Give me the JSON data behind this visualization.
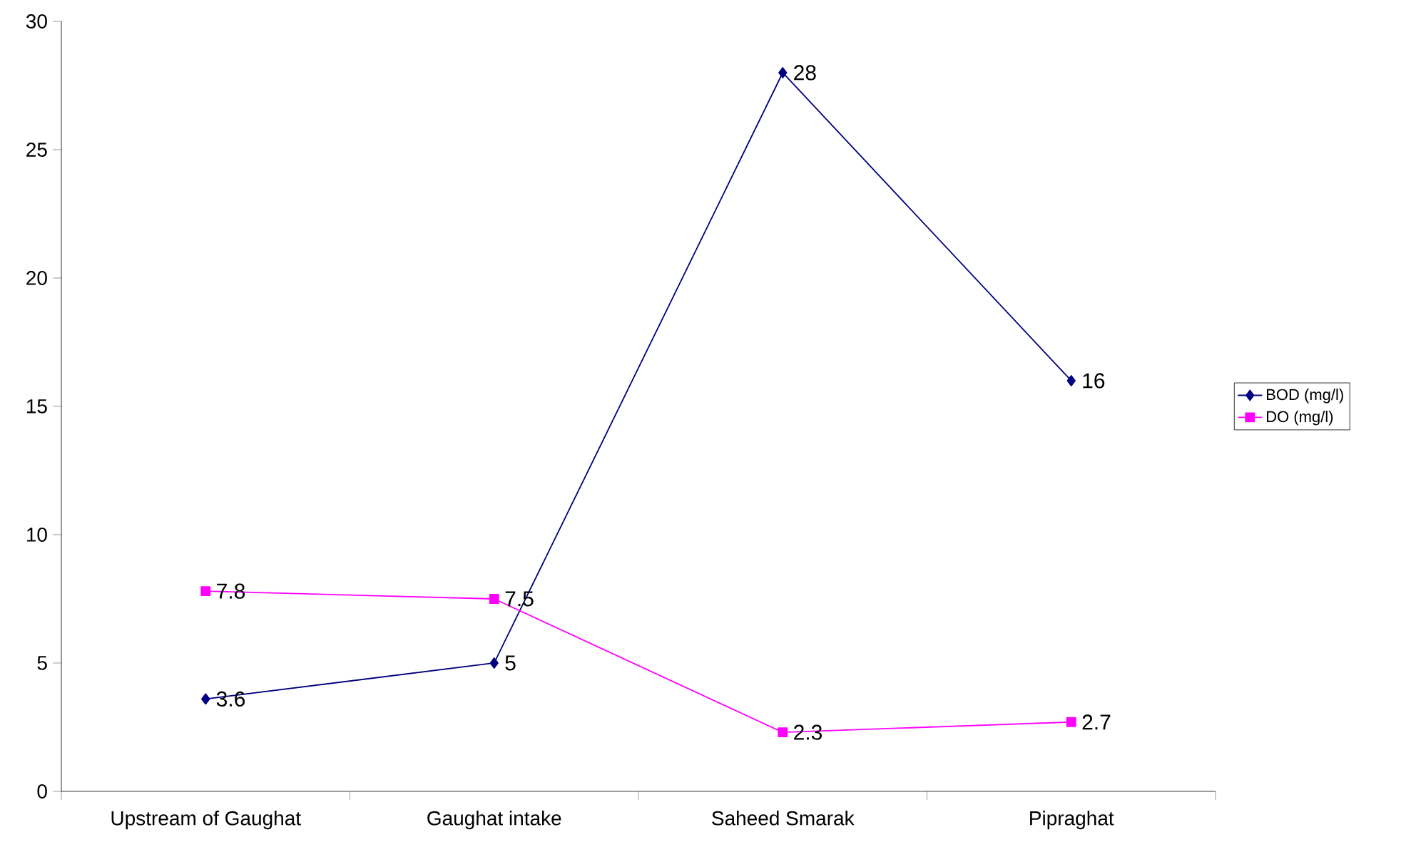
{
  "chart_data": {
    "type": "line",
    "categories": [
      "Upstream of Gaughat",
      "Gaughat intake",
      "Saheed Smarak",
      "Pipraghat"
    ],
    "series": [
      {
        "name": "BOD (mg/l)",
        "color": "#000080",
        "marker": "diamond",
        "values": [
          3.6,
          5,
          28,
          16
        ]
      },
      {
        "name": "DO (mg/l)",
        "color": "#ff00ff",
        "marker": "square",
        "values": [
          7.8,
          7.5,
          2.3,
          2.7
        ]
      }
    ],
    "ylim": [
      0,
      30
    ],
    "yticks": [
      0,
      5,
      10,
      15,
      20,
      25,
      30
    ],
    "grid": false,
    "legend": "right",
    "data_labels": true
  }
}
